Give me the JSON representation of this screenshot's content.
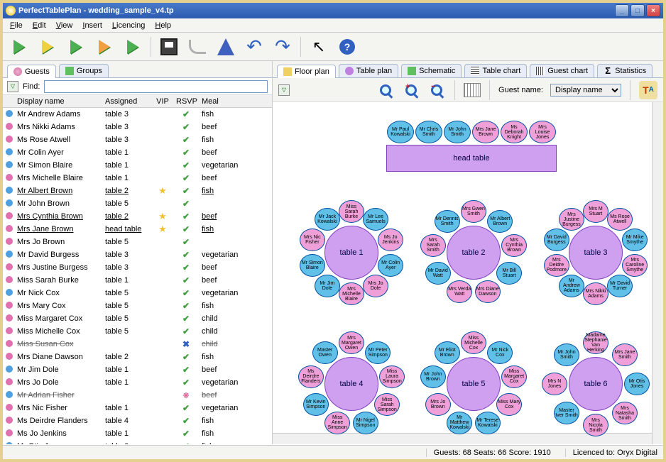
{
  "titlebar": {
    "title": "PerfectTablePlan - wedding_sample_v4.tp"
  },
  "menu": [
    "File",
    "Edit",
    "View",
    "Insert",
    "Licencing",
    "Help"
  ],
  "leftTabs": [
    {
      "label": "Guests",
      "icon": "guests"
    },
    {
      "label": "Groups",
      "icon": "groups"
    }
  ],
  "rightTabs": [
    {
      "label": "Floor plan",
      "icon": "floor"
    },
    {
      "label": "Table plan",
      "icon": "tableplan"
    },
    {
      "label": "Schematic",
      "icon": "schem"
    },
    {
      "label": "Table chart",
      "icon": "chart"
    },
    {
      "label": "Guest chart",
      "icon": "guestchart"
    },
    {
      "label": "Statistics",
      "icon": "stats",
      "glyph": "Σ"
    }
  ],
  "findLabel": "Find:",
  "guestNameLabel": "Guest name:",
  "guestNameValue": "Display name",
  "columns": {
    "name": "Display name",
    "assigned": "Assigned",
    "vip": "VIP",
    "rsvp": "RSVP",
    "meal": "Meal"
  },
  "guests": [
    {
      "g": "m",
      "name": "Mr Andrew Adams",
      "tbl": "table 3",
      "vip": "",
      "rsvp": "y",
      "meal": "fish"
    },
    {
      "g": "f",
      "name": "Mrs Nikki Adams",
      "tbl": "table 3",
      "vip": "",
      "rsvp": "y",
      "meal": "beef"
    },
    {
      "g": "f",
      "name": "Ms Rose Atwell",
      "tbl": "table 3",
      "vip": "",
      "rsvp": "y",
      "meal": "fish"
    },
    {
      "g": "m",
      "name": "Mr Colin Ayer",
      "tbl": "table 1",
      "vip": "",
      "rsvp": "y",
      "meal": "beef"
    },
    {
      "g": "m",
      "name": "Mr Simon Blaire",
      "tbl": "table 1",
      "vip": "",
      "rsvp": "y",
      "meal": "vegetarian"
    },
    {
      "g": "f",
      "name": "Mrs Michelle Blaire",
      "tbl": "table 1",
      "vip": "",
      "rsvp": "y",
      "meal": "beef"
    },
    {
      "g": "m",
      "name": "Mr Albert Brown",
      "tbl": "table 2",
      "vip": "★",
      "rsvp": "y",
      "meal": "fish",
      "u": true
    },
    {
      "g": "m",
      "name": "Mr John Brown",
      "tbl": "table 5",
      "vip": "",
      "rsvp": "y",
      "meal": ""
    },
    {
      "g": "f",
      "name": "Mrs Cynthia Brown",
      "tbl": "table 2",
      "vip": "★",
      "rsvp": "y",
      "meal": "beef",
      "u": true
    },
    {
      "g": "f",
      "name": "Mrs Jane Brown",
      "tbl": "head table",
      "vip": "★",
      "rsvp": "y",
      "meal": "fish",
      "u": true
    },
    {
      "g": "f",
      "name": "Mrs Jo Brown",
      "tbl": "table 5",
      "vip": "",
      "rsvp": "y",
      "meal": ""
    },
    {
      "g": "m",
      "name": "Mr David Burgess",
      "tbl": "table 3",
      "vip": "",
      "rsvp": "y",
      "meal": "vegetarian"
    },
    {
      "g": "f",
      "name": "Mrs Justine Burgess",
      "tbl": "table 3",
      "vip": "",
      "rsvp": "y",
      "meal": "beef"
    },
    {
      "g": "f",
      "name": "Miss Sarah Burke",
      "tbl": "table 1",
      "vip": "",
      "rsvp": "y",
      "meal": "beef"
    },
    {
      "g": "m",
      "name": "Mr Nick Cox",
      "tbl": "table 5",
      "vip": "",
      "rsvp": "y",
      "meal": "vegetarian"
    },
    {
      "g": "f",
      "name": "Mrs Mary Cox",
      "tbl": "table 5",
      "vip": "",
      "rsvp": "y",
      "meal": "fish"
    },
    {
      "g": "f",
      "name": "Miss Margaret Cox",
      "tbl": "table 5",
      "vip": "",
      "rsvp": "y",
      "meal": "child"
    },
    {
      "g": "f",
      "name": "Miss Michelle Cox",
      "tbl": "table 5",
      "vip": "",
      "rsvp": "y",
      "meal": "child"
    },
    {
      "g": "f",
      "name": "Miss Susan Cox",
      "tbl": "",
      "vip": "",
      "rsvp": "x",
      "meal": "child",
      "s": true
    },
    {
      "g": "f",
      "name": "Mrs Diane Dawson",
      "tbl": "table 2",
      "vip": "",
      "rsvp": "y",
      "meal": "fish"
    },
    {
      "g": "m",
      "name": "Mr Jim Dole",
      "tbl": "table 1",
      "vip": "",
      "rsvp": "y",
      "meal": "beef"
    },
    {
      "g": "f",
      "name": "Mrs Jo Dole",
      "tbl": "table 1",
      "vip": "",
      "rsvp": "y",
      "meal": "vegetarian"
    },
    {
      "g": "m",
      "name": "Mr Adrian Fisher",
      "tbl": "",
      "vip": "",
      "rsvp": "c",
      "meal": "beef",
      "s": true
    },
    {
      "g": "f",
      "name": "Mrs Nic Fisher",
      "tbl": "table 1",
      "vip": "",
      "rsvp": "y",
      "meal": "vegetarian"
    },
    {
      "g": "f",
      "name": "Ms Deirdre Flanders",
      "tbl": "table 4",
      "vip": "",
      "rsvp": "y",
      "meal": "fish"
    },
    {
      "g": "f",
      "name": "Ms Jo Jenkins",
      "tbl": "table 1",
      "vip": "",
      "rsvp": "y",
      "meal": "fish"
    },
    {
      "g": "m",
      "name": "Mr Otis Jones",
      "tbl": "table 6",
      "vip": "",
      "rsvp": "y",
      "meal": "fish"
    }
  ],
  "headTable": {
    "label": "head table",
    "seats": [
      {
        "g": "m",
        "n": "Mr Paul Kowalski"
      },
      {
        "g": "m",
        "n": "Mr Chris Smith"
      },
      {
        "g": "m",
        "n": "Mr John Smith"
      },
      {
        "g": "f",
        "n": "Mrs Jane Brown"
      },
      {
        "g": "f",
        "n": "Ms Deborah Knight"
      },
      {
        "g": "f",
        "n": "Mrs Louise Jones"
      }
    ]
  },
  "tables": [
    {
      "label": "table 1",
      "seats": [
        {
          "g": "f",
          "n": "Miss Sarah Burke"
        },
        {
          "g": "m",
          "n": "Mr Lee Samuels"
        },
        {
          "g": "f",
          "n": "Ms Jo Jenkins"
        },
        {
          "g": "m",
          "n": "Mr Colin Ayer"
        },
        {
          "g": "f",
          "n": "Mrs Jo Dole"
        },
        {
          "g": "f",
          "n": "Mrs Michelle Blaire"
        },
        {
          "g": "m",
          "n": "Mr Jim Dole"
        },
        {
          "g": "m",
          "n": "Mr Simon Blaire"
        },
        {
          "g": "f",
          "n": "Mrs Nic Fisher"
        },
        {
          "g": "m",
          "n": "Mr Jack Kowalski"
        }
      ]
    },
    {
      "label": "table 2",
      "seats": [
        {
          "g": "f",
          "n": "Mrs Gwen Smith"
        },
        {
          "g": "m",
          "n": "Mr Albert Brown"
        },
        {
          "g": "f",
          "n": "Mrs Cynthia Brown"
        },
        {
          "g": "m",
          "n": "Mr Bill Stuart"
        },
        {
          "g": "f",
          "n": "Mrs Diane Dawson"
        },
        {
          "g": "f",
          "n": "Mrs Verda Watt"
        },
        {
          "g": "m",
          "n": "Mr David Watt"
        },
        {
          "g": "f",
          "n": "Mrs Sarah Smith"
        },
        {
          "g": "m",
          "n": "Mr Dennis Smith"
        }
      ]
    },
    {
      "label": "table 3",
      "seats": [
        {
          "g": "f",
          "n": "Mrs M Stuart"
        },
        {
          "g": "f",
          "n": "Ms Rose Atwell"
        },
        {
          "g": "m",
          "n": "Mr Mike Smythe"
        },
        {
          "g": "f",
          "n": "Mrs Caroline Smythe"
        },
        {
          "g": "m",
          "n": "Mr David Turner"
        },
        {
          "g": "f",
          "n": "Mrs Nikki Adams"
        },
        {
          "g": "m",
          "n": "Mr Andrew Adams"
        },
        {
          "g": "f",
          "n": "Mrs Deidre Podmore"
        },
        {
          "g": "m",
          "n": "Mr David Burgess"
        },
        {
          "g": "f",
          "n": "Mrs Justine Burgess"
        }
      ]
    },
    {
      "label": "table 4",
      "seats": [
        {
          "g": "f",
          "n": "Mrs Margaret Owen"
        },
        {
          "g": "m",
          "n": "Mr Peter Simpson"
        },
        {
          "g": "f",
          "n": "Miss Laura Simpson"
        },
        {
          "g": "f",
          "n": "Miss Sarah Simpson"
        },
        {
          "g": "m",
          "n": "Mr Nigel Simpson"
        },
        {
          "g": "f",
          "n": "Miss Anne Simpson"
        },
        {
          "g": "m",
          "n": "Mr Kevin Simpson"
        },
        {
          "g": "f",
          "n": "Ms Deirdre Flanders"
        },
        {
          "g": "m",
          "n": "Master Owen"
        }
      ]
    },
    {
      "label": "table 5",
      "seats": [
        {
          "g": "f",
          "n": "Miss Michelle Cox"
        },
        {
          "g": "m",
          "n": "Mr Nick Cox"
        },
        {
          "g": "f",
          "n": "Miss Margaret Cox"
        },
        {
          "g": "f",
          "n": "Miss Mary Cox"
        },
        {
          "g": "m",
          "n": "Mr Terese Kowalski"
        },
        {
          "g": "m",
          "n": "Mr Matthew Kowalski"
        },
        {
          "g": "f",
          "n": "Mrs Jo Brown"
        },
        {
          "g": "m",
          "n": "Mr John Brown"
        },
        {
          "g": "m",
          "n": "Mr Eliot Brown"
        }
      ]
    },
    {
      "label": "table 6",
      "seats": [
        {
          "g": "f",
          "n": "Madame Stephanie Van Herking"
        },
        {
          "g": "f",
          "n": "Mrs Jane Smith"
        },
        {
          "g": "m",
          "n": "Mr Otis Jones"
        },
        {
          "g": "f",
          "n": "Mrs Natasha Smith"
        },
        {
          "g": "f",
          "n": "Mrs Nicola Smith"
        },
        {
          "g": "m",
          "n": "Master Iver Smith"
        },
        {
          "g": "f",
          "n": "Mrs N Jones"
        },
        {
          "g": "m",
          "n": "Mr John Smith"
        }
      ]
    }
  ],
  "status": {
    "stats": "Guests: 68 Seats: 66 Score: 1910",
    "license": "Licenced to: Oryx Digital"
  },
  "colors": {
    "seatMale": "#60c0e8",
    "seatFemale": "#f0a0d8",
    "tableCenter": "#d0a0f0",
    "seatBorder": "#0050a0"
  }
}
